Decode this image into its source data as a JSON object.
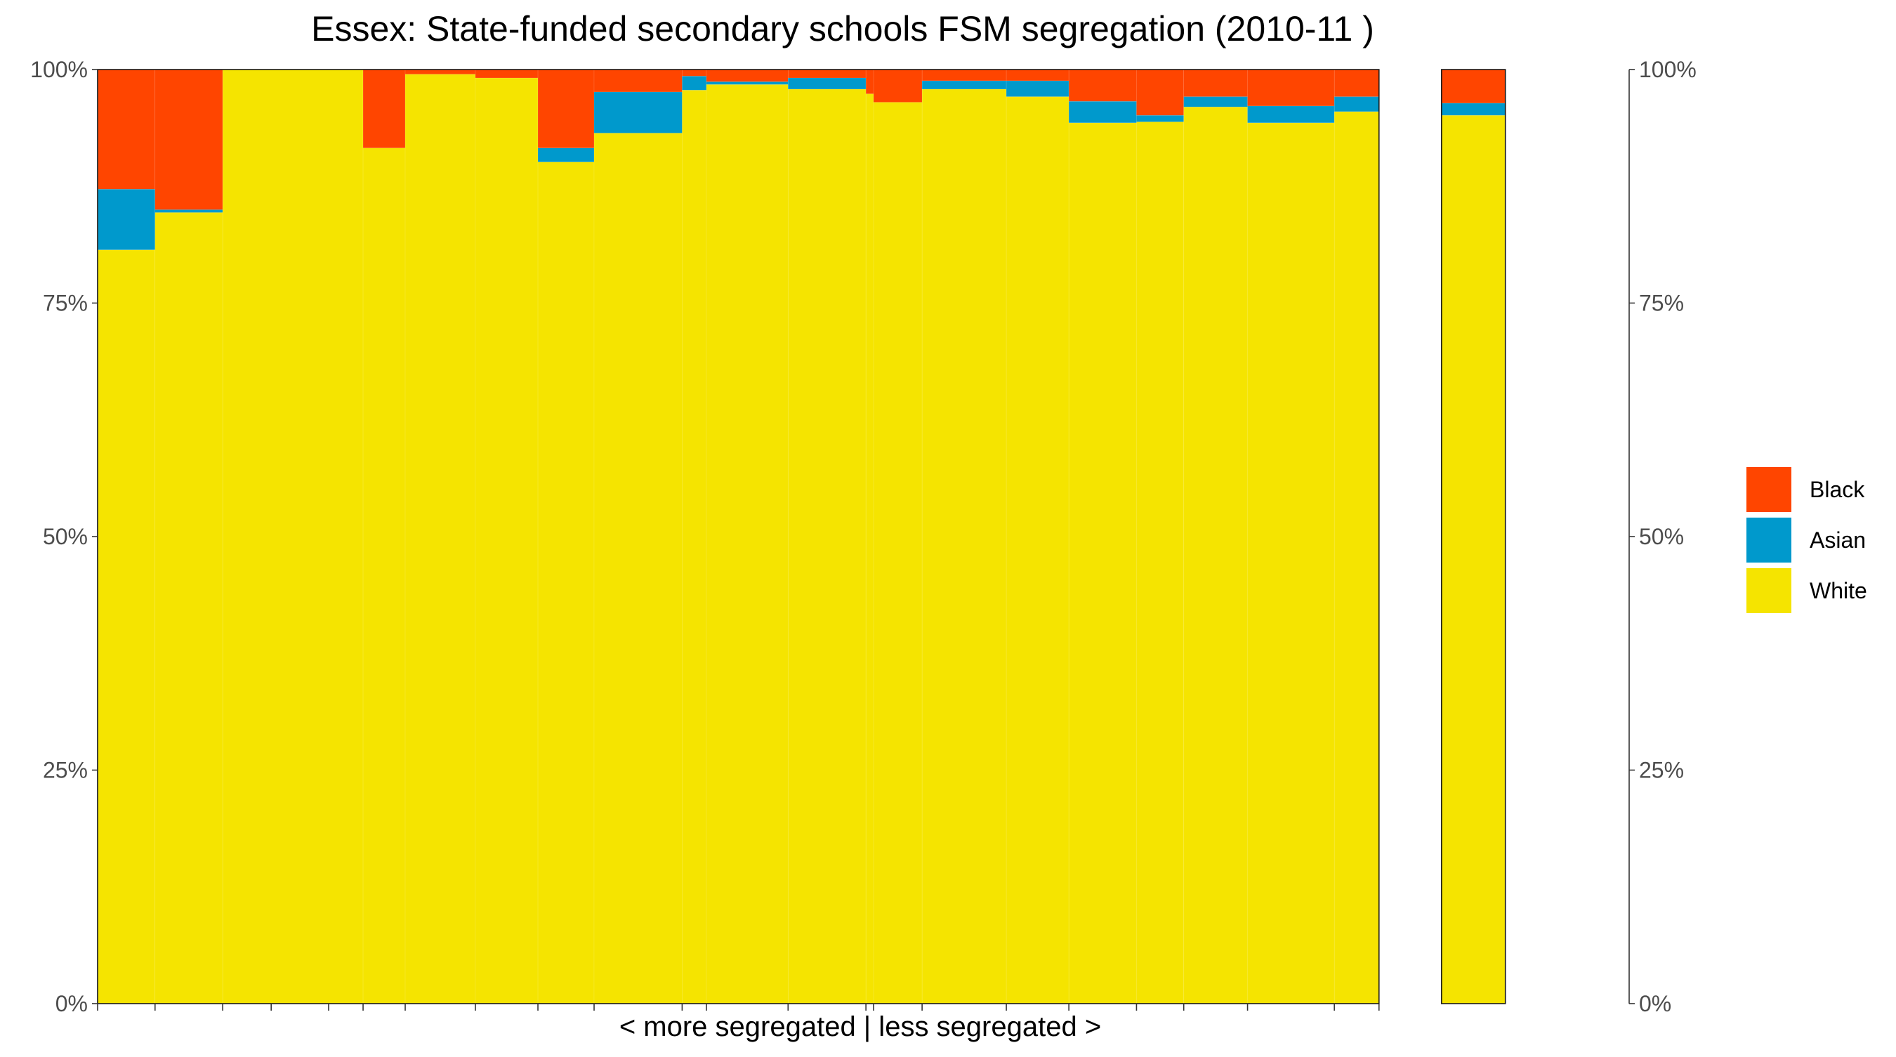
{
  "chart_data": {
    "type": "bar",
    "title": "Essex: State-funded secondary schools FSM segregation (2010-11 )",
    "xlabel": "< more segregated | less segregated >",
    "ylabel": "",
    "ylim": [
      0,
      1
    ],
    "y_ticks": [
      "0%",
      "25%",
      "50%",
      "75%",
      "100%"
    ],
    "grid": false,
    "legend_position": "right",
    "series": [
      {
        "name": "Black",
        "color": "#FF4500"
      },
      {
        "name": "Asian",
        "color": "#0099CC"
      },
      {
        "name": "White",
        "color": "#F5E400"
      }
    ],
    "x_domain": [
      0,
      120
    ],
    "bars": [
      {
        "start": 0.0,
        "end": 4.5,
        "white": 0.807,
        "asian": 0.065,
        "black": 0.128
      },
      {
        "start": 4.5,
        "end": 9.8,
        "white": 0.847,
        "asian": 0.003,
        "black": 0.15
      },
      {
        "start": 9.8,
        "end": 20.8,
        "white": 1.0,
        "asian": 0.0,
        "black": 0.0
      },
      {
        "start": 20.8,
        "end": 24.1,
        "white": 0.916,
        "asian": 0.0,
        "black": 0.084
      },
      {
        "start": 24.1,
        "end": 29.6,
        "white": 0.995,
        "asian": 0.0,
        "black": 0.005
      },
      {
        "start": 29.6,
        "end": 34.5,
        "white": 0.991,
        "asian": 0.0,
        "black": 0.009
      },
      {
        "start": 34.5,
        "end": 38.9,
        "white": 0.901,
        "asian": 0.015,
        "black": 0.084
      },
      {
        "start": 38.9,
        "end": 45.8,
        "white": 0.932,
        "asian": 0.044,
        "black": 0.024
      },
      {
        "start": 45.8,
        "end": 47.7,
        "white": 0.978,
        "asian": 0.015,
        "black": 0.007
      },
      {
        "start": 47.7,
        "end": 54.1,
        "white": 0.984,
        "asian": 0.003,
        "black": 0.013
      },
      {
        "start": 54.1,
        "end": 60.2,
        "white": 0.979,
        "asian": 0.012,
        "black": 0.009
      },
      {
        "start": 60.2,
        "end": 60.8,
        "white": 0.974,
        "asian": 0.0,
        "black": 0.026
      },
      {
        "start": 60.8,
        "end": 64.6,
        "white": 0.965,
        "asian": 0.0,
        "black": 0.035
      },
      {
        "start": 64.6,
        "end": 71.2,
        "white": 0.979,
        "asian": 0.009,
        "black": 0.012
      },
      {
        "start": 71.2,
        "end": 76.1,
        "white": 0.971,
        "asian": 0.017,
        "black": 0.012
      },
      {
        "start": 76.1,
        "end": 81.4,
        "white": 0.943,
        "asian": 0.023,
        "black": 0.034
      },
      {
        "start": 81.4,
        "end": 85.1,
        "white": 0.944,
        "asian": 0.007,
        "black": 0.049
      },
      {
        "start": 85.1,
        "end": 90.1,
        "white": 0.96,
        "asian": 0.011,
        "black": 0.029
      },
      {
        "start": 90.1,
        "end": 96.9,
        "white": 0.943,
        "asian": 0.018,
        "black": 0.039
      },
      {
        "start": 96.9,
        "end": 100.4,
        "white": 0.955,
        "asian": 0.016,
        "black": 0.029
      },
      {
        "start": 105.3,
        "end": 110.3,
        "white": 0.951,
        "asian": 0.013,
        "black": 0.036
      }
    ],
    "boxes": [
      {
        "start": 0.0,
        "end": 100.4
      },
      {
        "start": 105.3,
        "end": 110.3
      }
    ],
    "x_ticks": [
      0.0,
      4.5,
      9.8,
      13.6,
      18.1,
      20.8,
      24.1,
      29.6,
      34.5,
      38.9,
      45.8,
      47.7,
      54.1,
      60.2,
      60.8,
      64.6,
      71.2,
      76.1,
      81.4,
      85.1,
      90.1,
      96.9,
      100.4
    ]
  }
}
